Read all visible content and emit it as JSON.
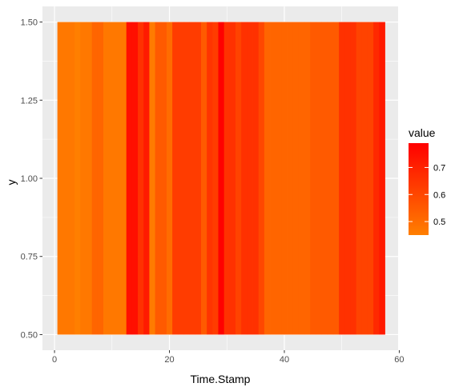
{
  "chart_data": {
    "type": "heatmap",
    "xlabel": "Time.Stamp",
    "ylabel": "y",
    "xlim": [
      -2.1,
      59.8
    ],
    "ylim": [
      0.45,
      1.55
    ],
    "x_ticks": [
      0,
      20,
      40,
      60
    ],
    "y_ticks": [
      0.5,
      0.75,
      1.0,
      1.25,
      1.5
    ],
    "y_tick_labels": [
      "0.50",
      "0.75",
      "1.00",
      "1.25",
      "1.50"
    ],
    "tile_y_range": [
      0.5,
      1.5
    ],
    "x": [
      1,
      2,
      3,
      4,
      5,
      6,
      7,
      8,
      9,
      10,
      11,
      12,
      13,
      14,
      15,
      16,
      17,
      18,
      19,
      20,
      21,
      22,
      23,
      24,
      25,
      26,
      27,
      28,
      29,
      30,
      31,
      32,
      33,
      34,
      35,
      36,
      37,
      38,
      39,
      40,
      41,
      42,
      43,
      44,
      45,
      46,
      47,
      48,
      49,
      50,
      51,
      52,
      53,
      54,
      55,
      56,
      57
    ],
    "values": [
      0.47,
      0.47,
      0.47,
      0.45,
      0.47,
      0.47,
      0.52,
      0.52,
      0.47,
      0.47,
      0.47,
      0.47,
      0.75,
      0.75,
      0.66,
      0.72,
      0.46,
      0.55,
      0.55,
      0.5,
      0.63,
      0.63,
      0.63,
      0.63,
      0.63,
      0.55,
      0.65,
      0.63,
      0.79,
      0.66,
      0.66,
      0.61,
      0.66,
      0.66,
      0.66,
      0.6,
      0.52,
      0.52,
      0.52,
      0.52,
      0.52,
      0.52,
      0.52,
      0.52,
      0.55,
      0.55,
      0.55,
      0.55,
      0.55,
      0.66,
      0.66,
      0.66,
      0.61,
      0.61,
      0.61,
      0.68,
      0.72
    ],
    "legend": {
      "title": "value",
      "breaks": [
        0.5,
        0.6,
        0.7
      ],
      "labels": [
        "0.5",
        "0.6",
        "0.7"
      ],
      "range": [
        0.45,
        0.79
      ],
      "low_color": "#ff7f00",
      "high_color": "#ff0000"
    },
    "panel_background": "#ebebeb",
    "grid": true
  }
}
